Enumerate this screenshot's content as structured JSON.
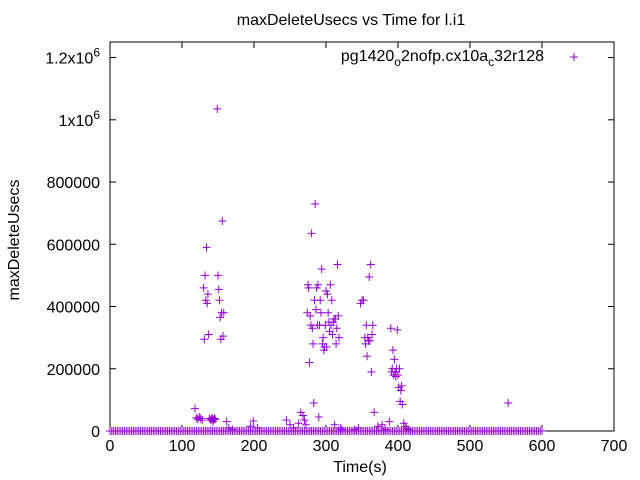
{
  "chart_data": {
    "type": "scatter",
    "title": "maxDeleteUsecs vs Time for l.i1",
    "xlabel": "Time(s)",
    "ylabel": "maxDeleteUsecs",
    "xlim": [
      0,
      700
    ],
    "ylim": [
      0,
      1250000
    ],
    "x_ticks": [
      0,
      100,
      200,
      300,
      400,
      500,
      600,
      700
    ],
    "x_tick_labels": [
      "0",
      "100",
      "200",
      "300",
      "400",
      "500",
      "600",
      "700"
    ],
    "y_ticks": [
      0,
      200000,
      400000,
      600000,
      800000,
      1000000,
      1200000
    ],
    "y_tick_labels": [
      {
        "text": "0"
      },
      {
        "text": "200000"
      },
      {
        "text": "400000"
      },
      {
        "text": "600000"
      },
      {
        "text": "800000"
      },
      {
        "text": "1x10",
        "sup": "6"
      },
      {
        "text": "1.2x10",
        "sup": "6"
      }
    ],
    "grid": false,
    "legend_position": "top-right",
    "series": [
      {
        "name": "pg1420_o2nofp.cx10a_c32r128",
        "name_parts": [
          {
            "text": "pg1420",
            "sub": false
          },
          {
            "text": "o",
            "sub": true
          },
          {
            "text": "2nofp.cx10a",
            "sub": false
          },
          {
            "text": "c",
            "sub": true
          },
          {
            "text": "32r128",
            "sub": false
          }
        ],
        "color": "#9400d3",
        "marker": "plus",
        "baseline": {
          "from": 0,
          "to": 600,
          "step": 2.5,
          "y": 0
        },
        "points": [
          [
            118,
            72000
          ],
          [
            120,
            42000
          ],
          [
            122,
            38000
          ],
          [
            124,
            45000
          ],
          [
            126,
            40000
          ],
          [
            128,
            35000
          ],
          [
            130,
            460000
          ],
          [
            131,
            295000
          ],
          [
            132,
            500000
          ],
          [
            133,
            420000
          ],
          [
            134,
            590000
          ],
          [
            135,
            410000
          ],
          [
            136,
            440000
          ],
          [
            137,
            310000
          ],
          [
            138,
            40000
          ],
          [
            140,
            35000
          ],
          [
            141,
            38000
          ],
          [
            142,
            42000
          ],
          [
            143,
            30000
          ],
          [
            144,
            36000
          ],
          [
            145,
            40000
          ],
          [
            146,
            38000
          ],
          [
            149,
            1035000
          ],
          [
            150,
            500000
          ],
          [
            151,
            455000
          ],
          [
            152,
            420000
          ],
          [
            153,
            365000
          ],
          [
            154,
            295000
          ],
          [
            155,
            380000
          ],
          [
            156,
            675000
          ],
          [
            157,
            305000
          ],
          [
            158,
            380000
          ],
          [
            162,
            30000
          ],
          [
            165,
            10000
          ],
          [
            170,
            5000
          ],
          [
            195,
            15000
          ],
          [
            199,
            32000
          ],
          [
            205,
            10000
          ],
          [
            245,
            35000
          ],
          [
            250,
            20000
          ],
          [
            255,
            10000
          ],
          [
            262,
            25000
          ],
          [
            265,
            60000
          ],
          [
            268,
            50000
          ],
          [
            270,
            35000
          ],
          [
            272,
            20000
          ],
          [
            274,
            380000
          ],
          [
            275,
            470000
          ],
          [
            276,
            460000
          ],
          [
            277,
            220000
          ],
          [
            278,
            370000
          ],
          [
            279,
            340000
          ],
          [
            280,
            635000
          ],
          [
            281,
            330000
          ],
          [
            282,
            280000
          ],
          [
            283,
            90000
          ],
          [
            284,
            420000
          ],
          [
            285,
            730000
          ],
          [
            286,
            390000
          ],
          [
            287,
            460000
          ],
          [
            288,
            340000
          ],
          [
            289,
            470000
          ],
          [
            290,
            45000
          ],
          [
            291,
            340000
          ],
          [
            292,
            420000
          ],
          [
            293,
            380000
          ],
          [
            294,
            520000
          ],
          [
            295,
            280000
          ],
          [
            296,
            300000
          ],
          [
            297,
            260000
          ],
          [
            298,
            270000
          ],
          [
            299,
            340000
          ],
          [
            300,
            450000
          ],
          [
            301,
            270000
          ],
          [
            302,
            440000
          ],
          [
            303,
            380000
          ],
          [
            304,
            350000
          ],
          [
            305,
            320000
          ],
          [
            306,
            470000
          ],
          [
            307,
            340000
          ],
          [
            308,
            420000
          ],
          [
            309,
            310000
          ],
          [
            310,
            350000
          ],
          [
            311,
            360000
          ],
          [
            312,
            20000
          ],
          [
            313,
            360000
          ],
          [
            314,
            280000
          ],
          [
            315,
            330000
          ],
          [
            316,
            535000
          ],
          [
            317,
            370000
          ],
          [
            318,
            300000
          ],
          [
            320,
            10000
          ],
          [
            322,
            5000
          ],
          [
            340,
            5000
          ],
          [
            345,
            10000
          ],
          [
            348,
            410000
          ],
          [
            350,
            420000
          ],
          [
            352,
            420000
          ],
          [
            354,
            300000
          ],
          [
            355,
            280000
          ],
          [
            356,
            340000
          ],
          [
            357,
            240000
          ],
          [
            358,
            300000
          ],
          [
            359,
            290000
          ],
          [
            360,
            495000
          ],
          [
            361,
            290000
          ],
          [
            362,
            535000
          ],
          [
            363,
            190000
          ],
          [
            364,
            310000
          ],
          [
            365,
            340000
          ],
          [
            367,
            60000
          ],
          [
            372,
            15000
          ],
          [
            378,
            20000
          ],
          [
            382,
            5000
          ],
          [
            388,
            30000
          ],
          [
            390,
            330000
          ],
          [
            391,
            190000
          ],
          [
            392,
            200000
          ],
          [
            393,
            260000
          ],
          [
            394,
            180000
          ],
          [
            395,
            230000
          ],
          [
            396,
            190000
          ],
          [
            397,
            175000
          ],
          [
            398,
            200000
          ],
          [
            399,
            325000
          ],
          [
            400,
            180000
          ],
          [
            401,
            140000
          ],
          [
            402,
            200000
          ],
          [
            403,
            95000
          ],
          [
            404,
            130000
          ],
          [
            405,
            145000
          ],
          [
            406,
            85000
          ],
          [
            408,
            25000
          ],
          [
            410,
            15000
          ],
          [
            412,
            8000
          ],
          [
            415,
            5000
          ],
          [
            553,
            90000
          ]
        ]
      }
    ]
  }
}
